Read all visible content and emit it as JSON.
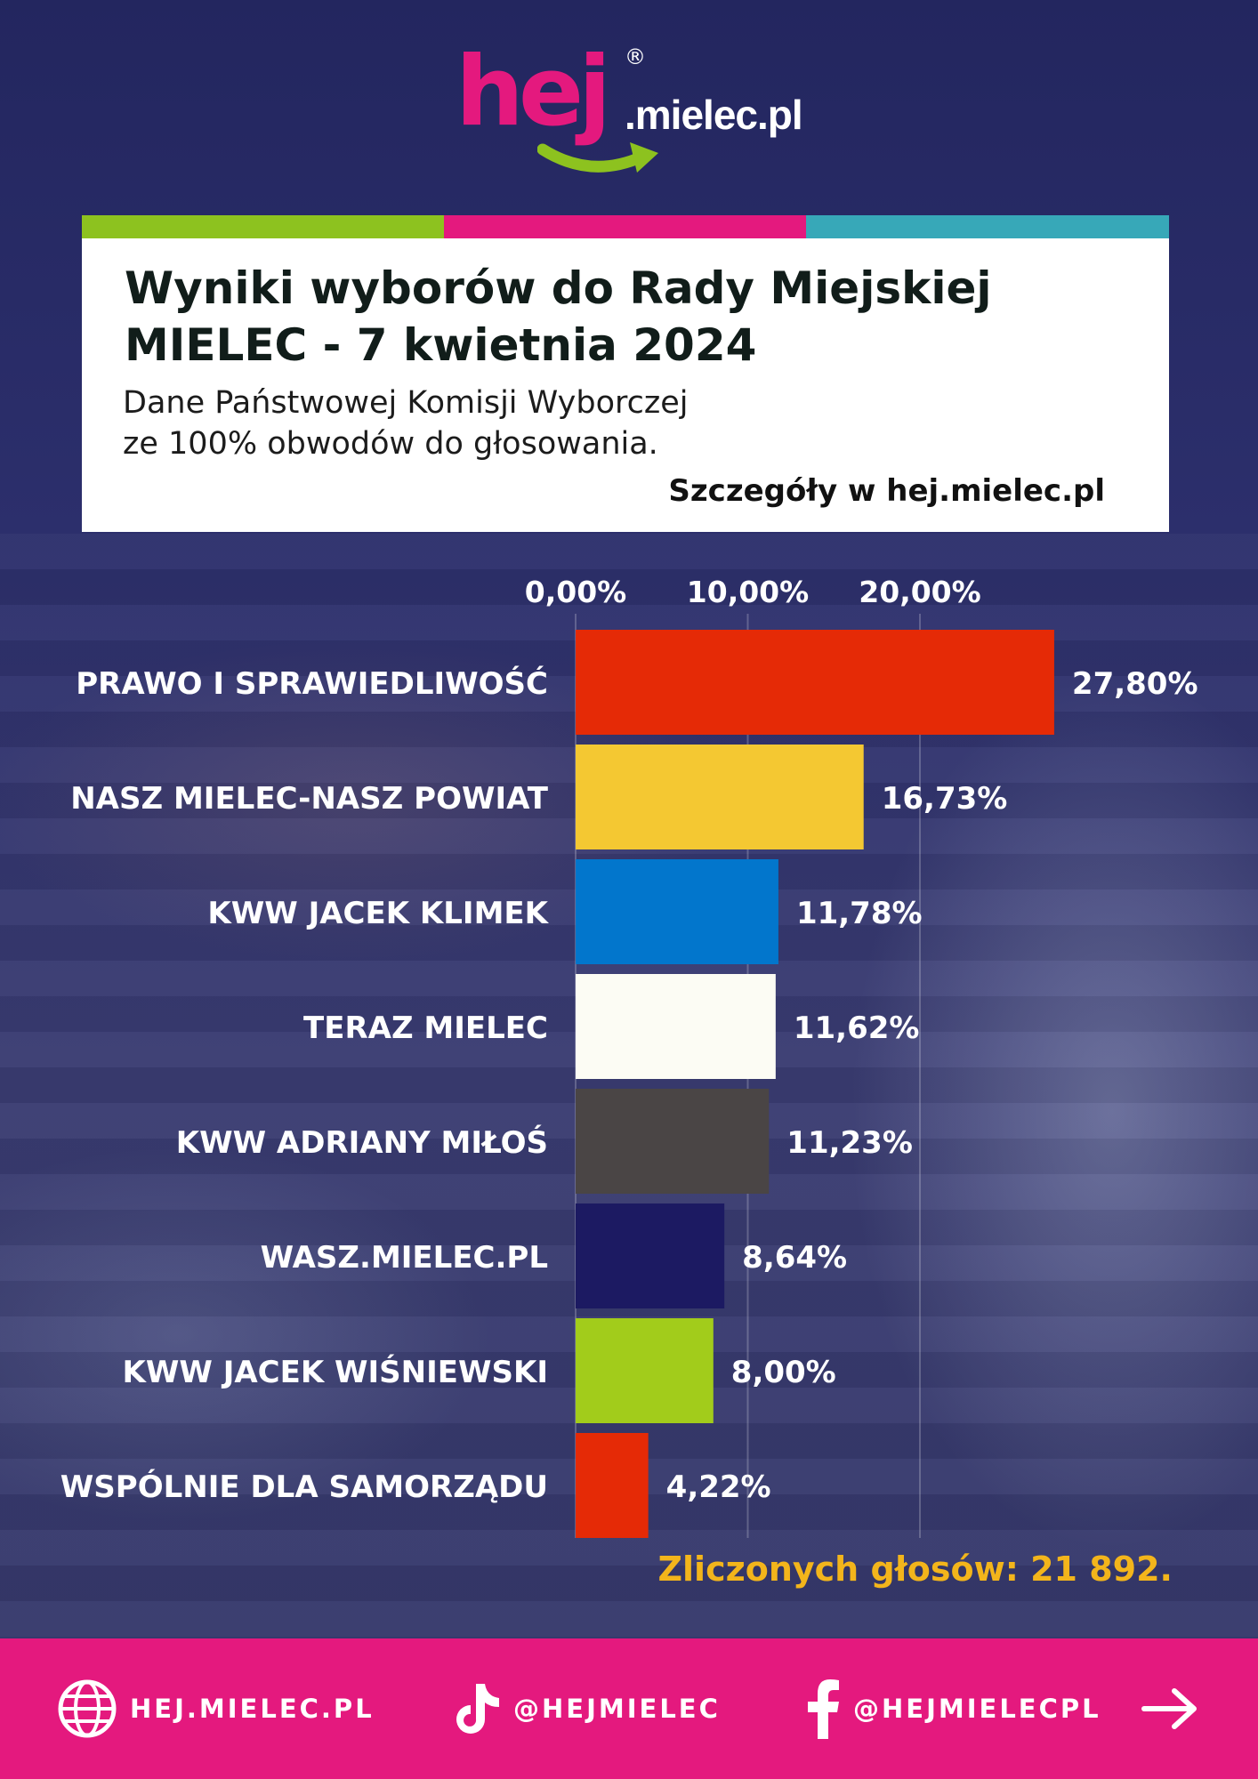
{
  "brand": {
    "logo_main": "hej",
    "logo_domain": ".mielec.pl",
    "registered_mark": "®"
  },
  "colors": {
    "stripe": [
      "#8dc21f",
      "#e4197e",
      "#37a8b8"
    ],
    "accent_pink": "#e4197e",
    "total_text": "#f3b51b"
  },
  "header": {
    "title_line1": "Wyniki wyborów do Rady Miejskiej",
    "title_line2": "MIELEC - 7 kwietnia 2024",
    "subtitle_line1": "Dane Państwowej Komisji Wyborczej",
    "subtitle_line2": "ze 100% obwodów do głosowania.",
    "details": "Szczegóły w hej.mielec.pl"
  },
  "chart_data": {
    "type": "bar",
    "orientation": "horizontal",
    "title": "Wyniki wyborów do Rady Miejskiej MIELEC - 7 kwietnia 2024",
    "xlim": [
      0,
      30
    ],
    "ticks": [
      0,
      10,
      20
    ],
    "tick_labels": [
      "0,00%",
      "10,00%",
      "20,00%"
    ],
    "grid": true,
    "categories": [
      "PRAWO I SPRAWIEDLIWOŚĆ",
      "NASZ MIELEC-NASZ POWIAT",
      "KWW JACEK KLIMEK",
      "TERAZ MIELEC",
      "KWW ADRIANY MIŁOŚ",
      "WASZ.MIELEC.PL",
      "KWW JACEK WIŚNIEWSKI",
      "WSPÓLNIE DLA SAMORZĄDU"
    ],
    "values": [
      27.8,
      16.73,
      11.78,
      11.62,
      11.23,
      8.64,
      8.0,
      4.22
    ],
    "value_labels": [
      "27,80%",
      "16,73%",
      "11,78%",
      "11,62%",
      "11,23%",
      "8,64%",
      "8,00%",
      "4,22%"
    ],
    "colors": [
      "#e52a06",
      "#f4c832",
      "#0276cc",
      "#fcfcf4",
      "#4a4545",
      "#1c1a62",
      "#a2cc1b",
      "#e52a06"
    ]
  },
  "summary": {
    "total_votes": "Zliczonych głosów: 21 892."
  },
  "footer": {
    "website": "HEJ.MIELEC.PL",
    "tiktok": "@HEJMIELEC",
    "facebook": "@HEJMIELECPL"
  }
}
